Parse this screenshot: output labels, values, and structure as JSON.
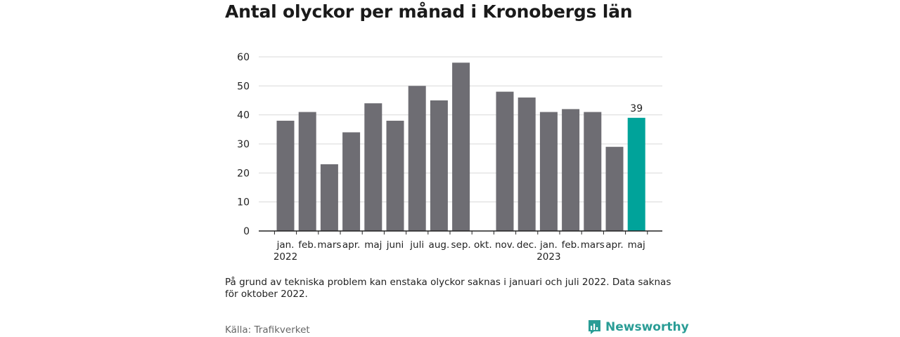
{
  "title": "Antal olyckor per månad i Kronobergs län",
  "note": "På grund av tekniska problem kan enstaka olyckor saknas i januari och juli 2022. Data saknas för oktober 2022.",
  "source": "Källa: Trafikverket",
  "brand": "Newsworthy",
  "colors": {
    "bar": "#6e6d73",
    "highlight": "#00a39a",
    "grid": "#d9d9d9",
    "axis": "#222222",
    "brand": "#2a9d96"
  },
  "chart_data": {
    "type": "bar",
    "categories": [
      "jan.",
      "feb.",
      "mars",
      "apr.",
      "maj",
      "juni",
      "juli",
      "aug.",
      "sep.",
      "okt.",
      "nov.",
      "dec.",
      "jan.",
      "feb.",
      "mars",
      "apr.",
      "maj"
    ],
    "year_labels": [
      {
        "index": 0,
        "label": "2022"
      },
      {
        "index": 12,
        "label": "2023"
      }
    ],
    "values": [
      38,
      41,
      23,
      34,
      44,
      38,
      50,
      45,
      58,
      null,
      48,
      46,
      41,
      42,
      41,
      29,
      39
    ],
    "highlight_index": 16,
    "highlight_label": "39",
    "ylim": [
      0,
      60
    ],
    "yticks": [
      0,
      10,
      20,
      30,
      40,
      50,
      60
    ],
    "grid": true,
    "xlabel": "",
    "ylabel": ""
  }
}
